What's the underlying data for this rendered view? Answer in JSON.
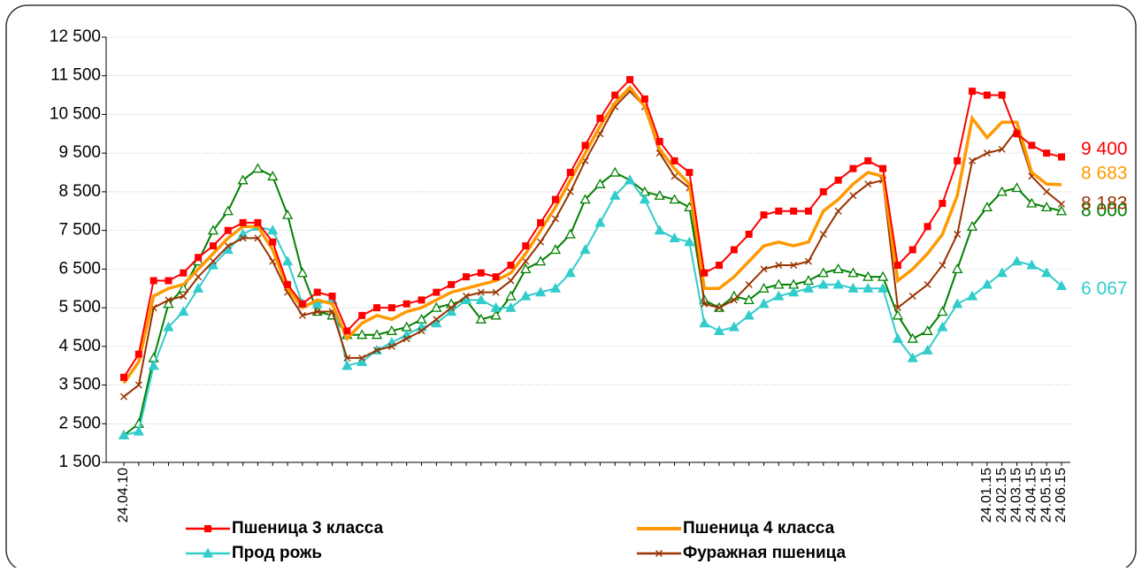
{
  "chart_data": {
    "type": "line",
    "categories": [
      "24.04.10",
      null,
      null,
      null,
      null,
      null,
      null,
      null,
      null,
      null,
      null,
      null,
      null,
      null,
      null,
      null,
      null,
      null,
      null,
      null,
      null,
      null,
      null,
      null,
      null,
      null,
      null,
      null,
      null,
      null,
      null,
      null,
      null,
      null,
      null,
      null,
      null,
      null,
      null,
      null,
      null,
      null,
      null,
      null,
      null,
      null,
      null,
      null,
      null,
      null,
      null,
      null,
      null,
      null,
      null,
      null,
      null,
      null,
      "24.01.15",
      "24.02.15",
      "24.03.15",
      "24.04.15",
      "24.05.15",
      "24.06.15"
    ],
    "ylim": [
      1500,
      12500
    ],
    "yticks": [
      {
        "value": 1500,
        "label": "1 500"
      },
      {
        "value": 2500,
        "label": "2 500"
      },
      {
        "value": 3500,
        "label": "3 500"
      },
      {
        "value": 4500,
        "label": "4 500"
      },
      {
        "value": 5500,
        "label": "5 500"
      },
      {
        "value": 6500,
        "label": "6 500"
      },
      {
        "value": 7500,
        "label": "7 500"
      },
      {
        "value": 8500,
        "label": "8 500"
      },
      {
        "value": 9500,
        "label": "9 500"
      },
      {
        "value": 10500,
        "label": "10 500"
      },
      {
        "value": 11500,
        "label": "11 500"
      },
      {
        "value": 12500,
        "label": "12 500"
      }
    ],
    "grid": true,
    "series": [
      {
        "name": "Пшеница 3 класса",
        "color": "#ff0000",
        "marker": "square",
        "values": [
          3700,
          4300,
          6200,
          6200,
          6400,
          6800,
          7100,
          7500,
          7700,
          7700,
          7200,
          6100,
          5600,
          5900,
          5800,
          4900,
          5300,
          5500,
          5500,
          5600,
          5700,
          5900,
          6100,
          6300,
          6400,
          6300,
          6600,
          7100,
          7700,
          8300,
          9000,
          9700,
          10400,
          11000,
          11400,
          10900,
          9800,
          9300,
          9000,
          6400,
          6600,
          7000,
          7400,
          7900,
          8000,
          8000,
          8000,
          8500,
          8800,
          9100,
          9300,
          9100,
          6600,
          7000,
          7600,
          8200,
          9300,
          11100,
          11000,
          11000,
          10000,
          9700,
          9500,
          9400
        ],
        "value_labels": [
          null,
          null,
          null,
          null,
          null,
          null,
          null,
          null,
          null,
          null,
          null,
          null,
          null,
          null,
          null,
          null,
          null,
          null,
          null,
          null,
          null,
          null,
          null,
          null,
          null,
          null,
          null,
          null,
          null,
          null,
          null,
          null,
          null,
          null,
          null,
          null,
          null,
          null,
          null,
          null,
          null,
          null,
          null,
          null,
          null,
          null,
          null,
          null,
          null,
          null,
          null,
          null,
          null,
          null,
          null,
          null,
          null,
          null,
          null,
          null,
          null,
          null,
          null,
          "9 400"
        ]
      },
      {
        "name": "Пшеница 4 класса",
        "color": "#ff9900",
        "marker": null,
        "values": [
          3550,
          4100,
          5800,
          6000,
          6100,
          6500,
          6900,
          7300,
          7600,
          7600,
          7000,
          6000,
          5500,
          5700,
          5600,
          4700,
          5100,
          5300,
          5200,
          5400,
          5500,
          5700,
          5900,
          6000,
          6100,
          6200,
          6400,
          6900,
          7500,
          8100,
          8800,
          9500,
          10200,
          10800,
          11200,
          10700,
          9600,
          9100,
          8700,
          6000,
          6000,
          6300,
          6700,
          7100,
          7200,
          7100,
          7200,
          8000,
          8300,
          8700,
          9000,
          8900,
          6200,
          6500,
          6900,
          7400,
          8400,
          10400,
          9900,
          10300,
          10300,
          9000,
          8700,
          8683
        ],
        "value_labels": [
          null,
          null,
          null,
          null,
          null,
          null,
          null,
          null,
          null,
          null,
          null,
          null,
          null,
          null,
          null,
          null,
          null,
          null,
          null,
          null,
          null,
          null,
          null,
          null,
          null,
          null,
          null,
          null,
          null,
          null,
          null,
          null,
          null,
          null,
          null,
          null,
          null,
          null,
          null,
          null,
          null,
          null,
          null,
          null,
          null,
          null,
          null,
          null,
          null,
          null,
          null,
          null,
          null,
          null,
          null,
          null,
          null,
          null,
          null,
          null,
          null,
          null,
          null,
          "8 683"
        ]
      },
      {
        "name": "Прод рожь",
        "color": "#33cccc",
        "marker": "triangle",
        "values": [
          2200,
          2300,
          4000,
          5000,
          5400,
          6000,
          6600,
          7000,
          7400,
          7600,
          7500,
          6700,
          5600,
          5600,
          5700,
          4000,
          4100,
          4400,
          4600,
          4800,
          5000,
          5100,
          5400,
          5700,
          5700,
          5500,
          5500,
          5800,
          5900,
          6000,
          6400,
          7000,
          7700,
          8400,
          8800,
          8300,
          7500,
          7300,
          7200,
          5100,
          4900,
          5000,
          5300,
          5600,
          5800,
          5900,
          6000,
          6100,
          6100,
          6000,
          6000,
          6000,
          4700,
          4200,
          4400,
          5000,
          5600,
          5800,
          6100,
          6400,
          6700,
          6600,
          6400,
          6067
        ],
        "value_labels": [
          null,
          null,
          null,
          null,
          null,
          null,
          null,
          null,
          null,
          null,
          null,
          null,
          null,
          null,
          null,
          null,
          null,
          null,
          null,
          null,
          null,
          null,
          null,
          null,
          null,
          null,
          null,
          null,
          null,
          null,
          null,
          null,
          null,
          null,
          null,
          null,
          null,
          null,
          null,
          null,
          null,
          null,
          null,
          null,
          null,
          null,
          null,
          null,
          null,
          null,
          null,
          null,
          null,
          null,
          null,
          null,
          null,
          null,
          null,
          null,
          null,
          null,
          null,
          "6 067"
        ]
      },
      {
        "name": "Фуражная пшеница",
        "color": "#993300",
        "marker": "x",
        "values": [
          3200,
          3500,
          5500,
          5700,
          5800,
          6300,
          6700,
          7100,
          7300,
          7300,
          6700,
          5900,
          5300,
          5400,
          5400,
          4200,
          4200,
          4400,
          4500,
          4700,
          4900,
          5200,
          5500,
          5800,
          5900,
          5900,
          6200,
          6700,
          7200,
          7800,
          8500,
          9300,
          10000,
          10700,
          11100,
          10700,
          9500,
          8900,
          8600,
          5600,
          5500,
          5700,
          6100,
          6500,
          6600,
          6600,
          6700,
          7400,
          8000,
          8400,
          8700,
          8800,
          5500,
          5800,
          6100,
          6600,
          7400,
          9300,
          9500,
          9600,
          10100,
          8900,
          8500,
          8183
        ],
        "value_labels": [
          null,
          null,
          null,
          null,
          null,
          null,
          null,
          null,
          null,
          null,
          null,
          null,
          null,
          null,
          null,
          null,
          null,
          null,
          null,
          null,
          null,
          null,
          null,
          null,
          null,
          null,
          null,
          null,
          null,
          null,
          null,
          null,
          null,
          null,
          null,
          null,
          null,
          null,
          null,
          null,
          null,
          null,
          null,
          null,
          null,
          null,
          null,
          null,
          null,
          null,
          null,
          null,
          null,
          null,
          null,
          null,
          null,
          null,
          null,
          null,
          null,
          null,
          null,
          "8 183"
        ]
      },
      {
        "name": null,
        "color": "#008000",
        "marker": "triangle-open",
        "values": [
          2200,
          2500,
          4200,
          5600,
          6000,
          6700,
          7500,
          8000,
          8800,
          9100,
          8900,
          7900,
          6400,
          5400,
          5300,
          4800,
          4800,
          4800,
          4900,
          5000,
          5200,
          5500,
          5600,
          5700,
          5200,
          5300,
          5800,
          6500,
          6700,
          7000,
          7400,
          8300,
          8700,
          9000,
          8800,
          8500,
          8400,
          8300,
          8100,
          5700,
          5500,
          5800,
          5700,
          6000,
          6100,
          6100,
          6200,
          6400,
          6500,
          6400,
          6300,
          6300,
          5300,
          4700,
          4900,
          5400,
          6500,
          7600,
          8100,
          8500,
          8600,
          8200,
          8100,
          8000
        ],
        "value_labels": [
          null,
          null,
          null,
          null,
          null,
          null,
          null,
          null,
          null,
          null,
          null,
          null,
          null,
          null,
          null,
          null,
          null,
          null,
          null,
          null,
          null,
          null,
          null,
          null,
          null,
          null,
          null,
          null,
          null,
          null,
          null,
          null,
          null,
          null,
          null,
          null,
          null,
          null,
          null,
          null,
          null,
          null,
          null,
          null,
          null,
          null,
          null,
          null,
          null,
          null,
          null,
          null,
          null,
          null,
          null,
          null,
          null,
          null,
          null,
          null,
          null,
          null,
          null,
          "8 000"
        ]
      }
    ]
  }
}
